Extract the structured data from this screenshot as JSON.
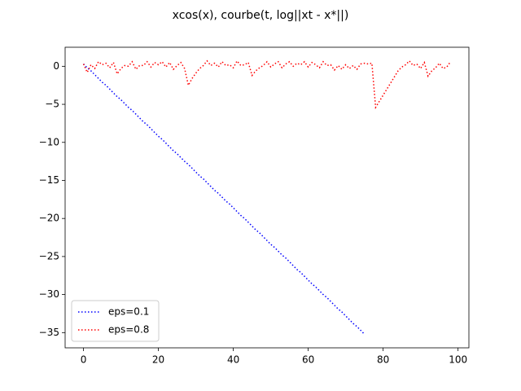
{
  "chart_data": {
    "type": "line",
    "title": "xcos(x), courbe(t, log||xt - x*||)",
    "xlim": [
      -4.9,
      102.9
    ],
    "ylim": [
      -37.0,
      2.5
    ],
    "xticks": [
      0,
      20,
      40,
      60,
      80,
      100
    ],
    "yticks": [
      {
        "value": -35,
        "label": "−35"
      },
      {
        "value": -30,
        "label": "−30"
      },
      {
        "value": -25,
        "label": "−25"
      },
      {
        "value": -20,
        "label": "−20"
      },
      {
        "value": -15,
        "label": "−15"
      },
      {
        "value": -10,
        "label": "−10"
      },
      {
        "value": -5,
        "label": "−5"
      },
      0
    ],
    "legend": "lower left",
    "grid": false,
    "series": [
      {
        "name": "eps=0.1",
        "color": "#0000ff",
        "x": [
          0,
          1,
          2,
          3,
          4,
          5,
          6,
          7,
          8,
          9,
          10,
          11,
          12,
          13,
          14,
          15,
          16,
          17,
          18,
          19,
          20,
          21,
          22,
          23,
          24,
          25,
          26,
          27,
          28,
          29,
          30,
          31,
          32,
          33,
          34,
          35,
          36,
          37,
          38,
          39,
          40,
          41,
          42,
          43,
          44,
          45,
          46,
          47,
          48,
          49,
          50,
          51,
          52,
          53,
          54,
          55,
          56,
          57,
          58,
          59,
          60,
          61,
          62,
          63,
          64,
          65,
          66,
          67,
          68,
          69,
          70,
          71,
          72,
          73,
          74,
          75
        ],
        "values": [
          0.3,
          -0.2,
          -0.6,
          -1.1,
          -1.6,
          -2.1,
          -2.5,
          -3.0,
          -3.5,
          -4.0,
          -4.4,
          -4.9,
          -5.4,
          -5.8,
          -6.3,
          -6.8,
          -7.3,
          -7.7,
          -8.2,
          -8.7,
          -9.2,
          -9.6,
          -10.1,
          -10.6,
          -11.1,
          -11.5,
          -12.0,
          -12.5,
          -12.9,
          -13.4,
          -13.9,
          -14.4,
          -14.8,
          -15.3,
          -15.8,
          -16.3,
          -16.7,
          -17.2,
          -17.7,
          -18.1,
          -18.6,
          -19.1,
          -19.6,
          -20.0,
          -20.5,
          -21.0,
          -21.5,
          -21.9,
          -22.4,
          -22.9,
          -23.4,
          -23.8,
          -24.3,
          -24.8,
          -25.2,
          -25.7,
          -26.2,
          -26.7,
          -27.1,
          -27.6,
          -28.1,
          -28.6,
          -29.0,
          -29.5,
          -30.0,
          -30.4,
          -30.9,
          -31.4,
          -31.9,
          -32.3,
          -32.8,
          -33.3,
          -33.8,
          -34.2,
          -34.7,
          -35.2
        ]
      },
      {
        "name": "eps=0.8",
        "color": "#ff0000",
        "x": [
          0,
          1,
          2,
          3,
          4,
          5,
          6,
          7,
          8,
          9,
          10,
          11,
          12,
          13,
          14,
          15,
          16,
          17,
          18,
          19,
          20,
          21,
          22,
          23,
          24,
          25,
          26,
          27,
          28,
          29,
          30,
          31,
          32,
          33,
          34,
          35,
          36,
          37,
          38,
          39,
          40,
          41,
          42,
          43,
          44,
          45,
          46,
          47,
          48,
          49,
          50,
          51,
          52,
          53,
          54,
          55,
          56,
          57,
          58,
          59,
          60,
          61,
          62,
          63,
          64,
          65,
          66,
          67,
          68,
          69,
          70,
          71,
          72,
          73,
          74,
          75,
          76,
          77,
          78,
          79,
          80,
          81,
          82,
          83,
          84,
          85,
          86,
          87,
          88,
          89,
          90,
          91,
          92,
          93,
          94,
          95,
          96,
          97,
          98
        ],
        "values": [
          0.3,
          -0.8,
          0.2,
          -0.3,
          0.6,
          0.2,
          0.4,
          -0.2,
          0.5,
          -1.0,
          -0.3,
          0.1,
          0.0,
          0.6,
          -0.4,
          0.1,
          0.1,
          0.6,
          -0.1,
          0.5,
          0.2,
          0.6,
          -0.1,
          0.5,
          -0.4,
          0.1,
          0.5,
          -0.3,
          -2.5,
          -1.6,
          -0.9,
          -0.3,
          0.1,
          0.7,
          0.1,
          0.4,
          -0.1,
          0.6,
          0.1,
          0.2,
          -0.2,
          0.7,
          0.1,
          0.2,
          0.5,
          -1.2,
          -0.6,
          -0.2,
          0.1,
          0.6,
          -0.1,
          0.3,
          0.6,
          -0.2,
          0.3,
          0.6,
          0.0,
          0.4,
          0.2,
          0.6,
          -0.1,
          0.5,
          0.2,
          -0.2,
          0.6,
          0.1,
          0.2,
          -0.5,
          0.1,
          -0.4,
          0.2,
          -0.3,
          0.1,
          -0.4,
          0.3,
          0.4,
          0.3,
          0.4,
          -5.4,
          -4.6,
          -3.8,
          -3.0,
          -2.2,
          -1.4,
          -0.6,
          -0.1,
          0.2,
          0.7,
          0.1,
          0.3,
          -0.3,
          0.5,
          -1.3,
          -0.6,
          -0.2,
          0.4,
          -0.3,
          -0.1,
          0.6
        ]
      }
    ]
  }
}
